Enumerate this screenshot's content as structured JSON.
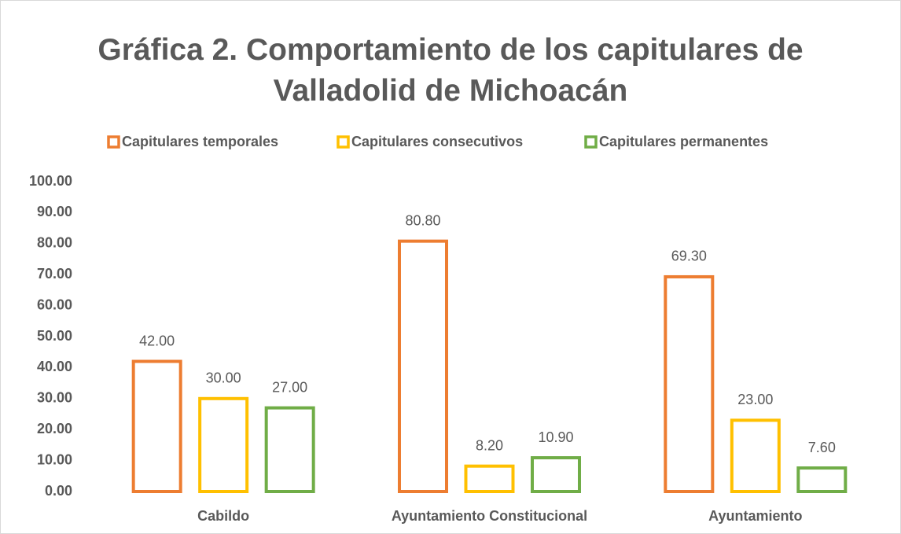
{
  "chart_data": {
    "type": "bar",
    "title": "Gráfica 2. Comportamiento de los capitulares de Valladolid de Michoacán",
    "categories": [
      "Cabildo",
      "Ayuntamiento Constitucional",
      "Ayuntamiento"
    ],
    "series": [
      {
        "name": "Capitulares temporales",
        "color": "#ED7D31",
        "values": [
          42,
          80.8,
          69.3
        ],
        "value_labels": [
          "42.00",
          "80.80",
          "69.30"
        ]
      },
      {
        "name": "Capitulares consecutivos",
        "color": "#FFC000",
        "values": [
          30,
          8.2,
          23
        ],
        "value_labels": [
          "30.00",
          "8.20",
          "23.00"
        ]
      },
      {
        "name": "Capitulares permanentes",
        "color": "#70AD47",
        "values": [
          27,
          10.9,
          7.6
        ],
        "value_labels": [
          "27.00",
          "10.90",
          "7.60"
        ]
      }
    ],
    "ylim": [
      0,
      100
    ],
    "yticks": [
      {
        "value": 0,
        "label": "0.00"
      },
      {
        "value": 10,
        "label": "10.00"
      },
      {
        "value": 20,
        "label": "20.00"
      },
      {
        "value": 30,
        "label": "30.00"
      },
      {
        "value": 40,
        "label": "40.00"
      },
      {
        "value": 50,
        "label": "50.00"
      },
      {
        "value": 60,
        "label": "60.00"
      },
      {
        "value": 70,
        "label": "70.00"
      },
      {
        "value": 80,
        "label": "80.00"
      },
      {
        "value": 90,
        "label": "90.00"
      },
      {
        "value": 100,
        "label": "100.00"
      }
    ],
    "legend": "top",
    "grid": false
  }
}
